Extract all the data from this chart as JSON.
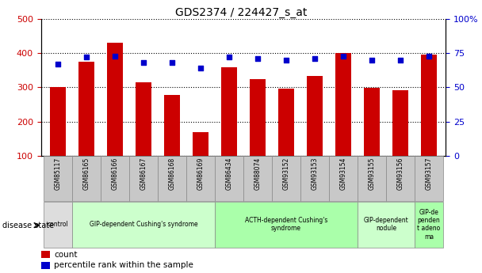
{
  "title": "GDS2374 / 224427_s_at",
  "samples": [
    "GSM85117",
    "GSM86165",
    "GSM86166",
    "GSM86167",
    "GSM86168",
    "GSM86169",
    "GSM86434",
    "GSM88074",
    "GSM93152",
    "GSM93153",
    "GSM93154",
    "GSM93155",
    "GSM93156",
    "GSM93157"
  ],
  "counts": [
    300,
    375,
    430,
    315,
    278,
    168,
    358,
    325,
    297,
    333,
    400,
    298,
    291,
    395
  ],
  "percentiles": [
    67,
    72,
    73,
    68,
    68,
    64,
    72,
    71,
    70,
    71,
    73,
    70,
    70,
    73
  ],
  "bar_color": "#cc0000",
  "dot_color": "#0000cc",
  "groups": [
    {
      "label": "control",
      "start": 0,
      "end": 1,
      "color": "#dddddd"
    },
    {
      "label": "GIP-dependent Cushing's syndrome",
      "start": 1,
      "end": 6,
      "color": "#ccffcc"
    },
    {
      "label": "ACTH-dependent Cushing's\nsyndrome",
      "start": 6,
      "end": 11,
      "color": "#aaffaa"
    },
    {
      "label": "GIP-dependent\nnodule",
      "start": 11,
      "end": 13,
      "color": "#ccffcc"
    },
    {
      "label": "GIP-de\npenden\nt adeno\nma",
      "start": 13,
      "end": 14,
      "color": "#aaffaa"
    }
  ],
  "ylim_left": [
    100,
    500
  ],
  "ylim_right": [
    0,
    100
  ],
  "yticks_left": [
    100,
    200,
    300,
    400,
    500
  ],
  "yticks_right": [
    0,
    25,
    50,
    75,
    100
  ],
  "ylabel_left_color": "#cc0000",
  "ylabel_right_color": "#0000cc",
  "bar_width": 0.55,
  "sample_label_color": "#000000",
  "grid_color": "#000000",
  "spine_color": "#000000"
}
